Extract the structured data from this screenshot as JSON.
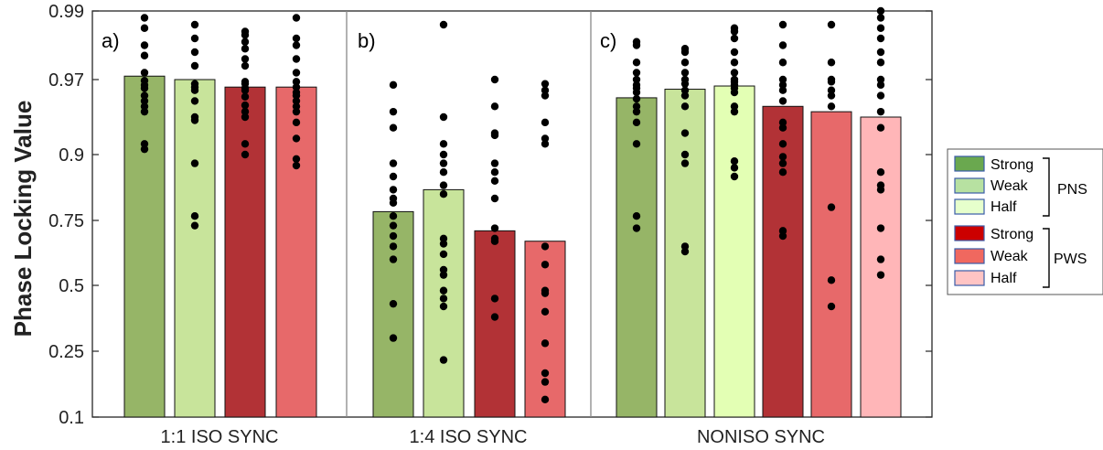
{
  "chart_data": {
    "type": "bar",
    "ylabel": "Phase Locking Value",
    "y_ticks": [
      "0.1",
      "0.25",
      "0.5",
      "0.75",
      "0.9",
      "0.97",
      "0.99"
    ],
    "groups": [
      {
        "panel_label": "a)",
        "label": "1:1 ISO SYNC",
        "bars": [
          {
            "series": "PNS Strong",
            "value": 0.971,
            "points": [
              0.988,
              0.985,
              0.98,
              0.977,
              0.972,
              0.969,
              0.965,
              0.962,
              0.955,
              0.95,
              0.945,
              0.94,
              0.91,
              0.905
            ]
          },
          {
            "series": "PNS Weak",
            "value": 0.97,
            "points": [
              0.986,
              0.982,
              0.978,
              0.974,
              0.966,
              0.963,
              0.96,
              0.95,
              0.935,
              0.932,
              0.88,
              0.76,
              0.73
            ]
          },
          {
            "series": "PWS Strong",
            "value": 0.963,
            "points": [
              0.984,
              0.983,
              0.981,
              0.979,
              0.976,
              0.974,
              0.968,
              0.966,
              0.962,
              0.96,
              0.954,
              0.946,
              0.94,
              0.935,
              0.91,
              0.9
            ]
          },
          {
            "series": "PWS Weak",
            "value": 0.963,
            "points": [
              0.988,
              0.982,
              0.98,
              0.976,
              0.972,
              0.968,
              0.963,
              0.958,
              0.955,
              0.95,
              0.945,
              0.94,
              0.93,
              0.915,
              0.89,
              0.875
            ]
          }
        ]
      },
      {
        "panel_label": "b)",
        "label": "1:4 ISO SYNC",
        "bars": [
          {
            "series": "PNS Strong",
            "value": 0.77,
            "points": [
              0.965,
              0.94,
              0.925,
              0.88,
              0.85,
              0.82,
              0.8,
              0.79,
              0.76,
              0.73,
              0.69,
              0.65,
              0.6,
              0.43,
              0.3
            ]
          },
          {
            "series": "PNS Weak",
            "value": 0.82,
            "points": [
              0.986,
              0.935,
              0.91,
              0.9,
              0.88,
              0.86,
              0.83,
              0.81,
              0.68,
              0.66,
              0.62,
              0.56,
              0.54,
              0.48,
              0.45,
              0.42,
              0.23
            ]
          },
          {
            "series": "PWS Strong",
            "value": 0.71,
            "points": [
              0.97,
              0.945,
              0.92,
              0.918,
              0.88,
              0.86,
              0.84,
              0.8,
              0.72,
              0.68,
              0.67,
              0.45,
              0.38
            ]
          },
          {
            "series": "PWS Weak",
            "value": 0.67,
            "points": [
              0.966,
              0.96,
              0.955,
              0.93,
              0.915,
              0.91,
              0.65,
              0.58,
              0.48,
              0.47,
              0.4,
              0.28,
              0.2,
              0.18,
              0.14
            ]
          }
        ]
      },
      {
        "panel_label": "c)",
        "label": "NONISO SYNC",
        "bars": [
          {
            "series": "PNS Strong",
            "value": 0.953,
            "points": [
              0.981,
              0.98,
              0.975,
              0.972,
              0.97,
              0.965,
              0.962,
              0.958,
              0.952,
              0.945,
              0.94,
              0.93,
              0.91,
              0.76,
              0.72
            ]
          },
          {
            "series": "PNS Weak",
            "value": 0.961,
            "points": [
              0.979,
              0.978,
              0.975,
              0.972,
              0.97,
              0.966,
              0.96,
              0.955,
              0.945,
              0.92,
              0.9,
              0.88,
              0.65,
              0.63
            ]
          },
          {
            "series": "PNS Half",
            "value": 0.964,
            "points": [
              0.985,
              0.984,
              0.982,
              0.978,
              0.975,
              0.972,
              0.97,
              0.968,
              0.965,
              0.962,
              0.958,
              0.945,
              0.94,
              0.885,
              0.87,
              0.85
            ]
          },
          {
            "series": "PWS Strong",
            "value": 0.945,
            "points": [
              0.986,
              0.98,
              0.975,
              0.97,
              0.965,
              0.96,
              0.95,
              0.93,
              0.925,
              0.91,
              0.895,
              0.88,
              0.86,
              0.71,
              0.69
            ]
          },
          {
            "series": "PWS Weak",
            "value": 0.94,
            "points": [
              0.986,
              0.975,
              0.97,
              0.968,
              0.96,
              0.955,
              0.945,
              0.78,
              0.52,
              0.42
            ]
          },
          {
            "series": "PWS Half",
            "value": 0.935,
            "points": [
              0.99,
              0.988,
              0.985,
              0.982,
              0.978,
              0.975,
              0.97,
              0.965,
              0.955,
              0.94,
              0.925,
              0.86,
              0.83,
              0.82,
              0.72,
              0.6,
              0.54
            ]
          }
        ]
      }
    ],
    "legend": {
      "placement": "right",
      "groups": [
        {
          "label": "PNS",
          "items": [
            {
              "name": "Strong",
              "color": "#6aa84f"
            },
            {
              "name": "Weak",
              "color": "#b7e1a1"
            },
            {
              "name": "Half",
              "color": "#e6ffcc"
            }
          ]
        },
        {
          "label": "PWS",
          "items": [
            {
              "name": "Strong",
              "color": "#cc0000"
            },
            {
              "name": "Weak",
              "color": "#f0685f"
            },
            {
              "name": "Half",
              "color": "#ffc4c4"
            }
          ]
        }
      ]
    },
    "series_colors": {
      "PNS Strong": "#96b567",
      "PNS Weak": "#c8e49b",
      "PNS Half": "#e3ffb4",
      "PWS Strong": "#b23236",
      "PWS Weak": "#e7696a",
      "PWS Half": "#ffb6b8"
    }
  }
}
